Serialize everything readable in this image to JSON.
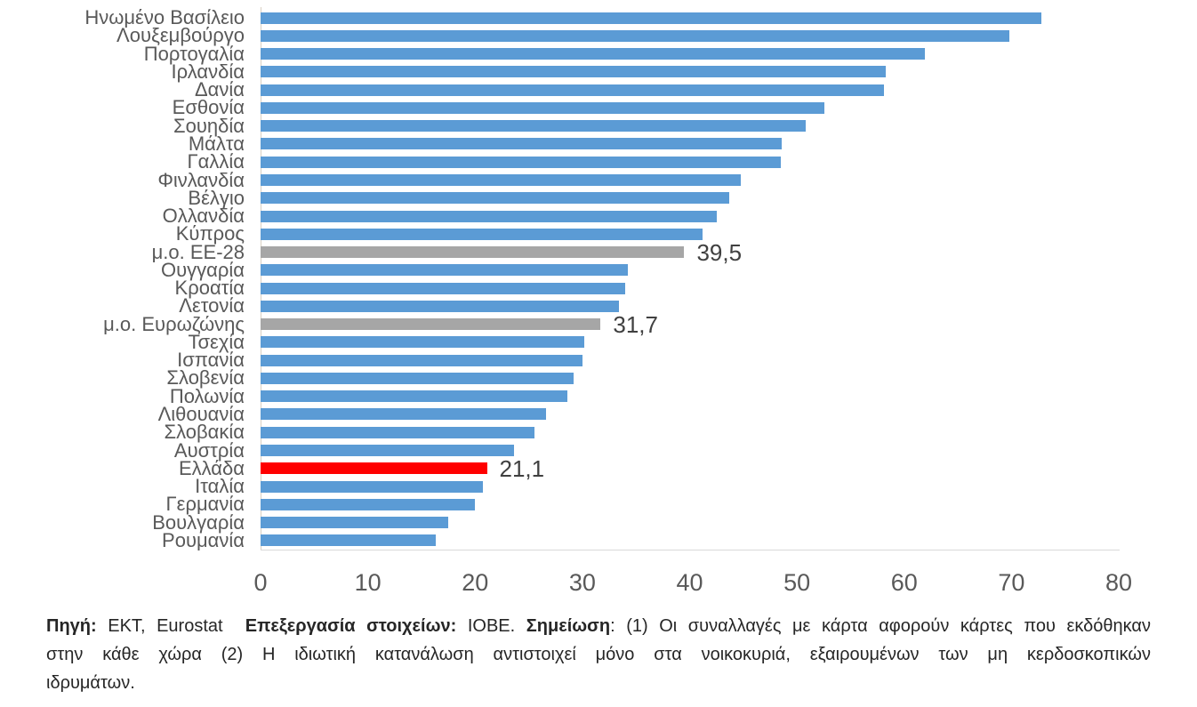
{
  "chart_data": {
    "type": "bar",
    "orientation": "horizontal",
    "title": "",
    "xlabel": "",
    "ylabel": "",
    "xlim": [
      0,
      80
    ],
    "x_ticks": [
      0,
      10,
      20,
      30,
      40,
      50,
      60,
      70,
      80
    ],
    "grid": false,
    "legend": false,
    "categories": [
      "Ηνωμένο Βασίλειο",
      "Λουξεμβούργο",
      "Πορτογαλία",
      "Ιρλανδία",
      "Δανία",
      "Εσθονία",
      "Σουηδία",
      "Μάλτα",
      "Γαλλία",
      "Φινλανδία",
      "Βέλγιο",
      "Ολλανδία",
      "Κύπρος",
      "μ.ο. ΕΕ-28",
      "Ουγγαρία",
      "Κροατία",
      "Λετονία",
      "μ.ο. Ευρωζώνης",
      "Τσεχία",
      "Ισπανία",
      "Σλοβενία",
      "Πολωνία",
      "Λιθουανία",
      "Σλοβακία",
      "Αυστρία",
      "Ελλάδα",
      "Ιταλία",
      "Γερμανία",
      "Βουλγαρία",
      "Ρουμανία"
    ],
    "values": [
      72.8,
      69.8,
      61.9,
      58.3,
      58.1,
      52.6,
      50.8,
      48.6,
      48.5,
      44.8,
      43.7,
      42.5,
      41.2,
      39.5,
      34.2,
      34.0,
      33.4,
      31.7,
      30.2,
      30.0,
      29.2,
      28.6,
      26.6,
      25.5,
      23.6,
      21.1,
      20.7,
      20.0,
      17.5,
      16.3
    ],
    "kinds": [
      "blue",
      "blue",
      "blue",
      "blue",
      "blue",
      "blue",
      "blue",
      "blue",
      "blue",
      "blue",
      "blue",
      "blue",
      "blue",
      "gray",
      "blue",
      "blue",
      "blue",
      "gray",
      "blue",
      "blue",
      "blue",
      "blue",
      "blue",
      "blue",
      "blue",
      "red",
      "blue",
      "blue",
      "blue",
      "blue"
    ],
    "data_labels": [
      {
        "index": 13,
        "text": "39,5"
      },
      {
        "index": 17,
        "text": "31,7"
      },
      {
        "index": 25,
        "text": "21,1"
      }
    ]
  },
  "colors": {
    "bar_blue": "#5B9BD5",
    "bar_gray": "#A6A6A6",
    "bar_red": "#FF0000",
    "category_text": "#595959",
    "tick_text": "#595959",
    "value_label_text": "#404040",
    "axis_line": "#D9D9D9",
    "footnote_text": "#262626"
  },
  "footnote": {
    "line1_segments": [
      {
        "text": "Πηγή:",
        "bold": true
      },
      {
        "text": " ΕΚΤ, Eurostat  ",
        "bold": false
      },
      {
        "text": "Επεξεργασία στοιχείων:",
        "bold": true
      },
      {
        "text": " ΙΟΒΕ. ",
        "bold": false
      },
      {
        "text": "Σημείωση",
        "bold": true
      },
      {
        "text": ": (1) Οι συναλλαγές με κάρτα αφορούν κάρτες που εκδόθηκαν",
        "bold": false
      }
    ],
    "line2": "στην κάθε χώρα (2) Η ιδιωτική κατανάλωση αντιστοιχεί μόνο στα νοικοκυριά, εξαιρουμένων των μη κερδοσκοπικών",
    "line3": "ιδρυμάτων."
  }
}
